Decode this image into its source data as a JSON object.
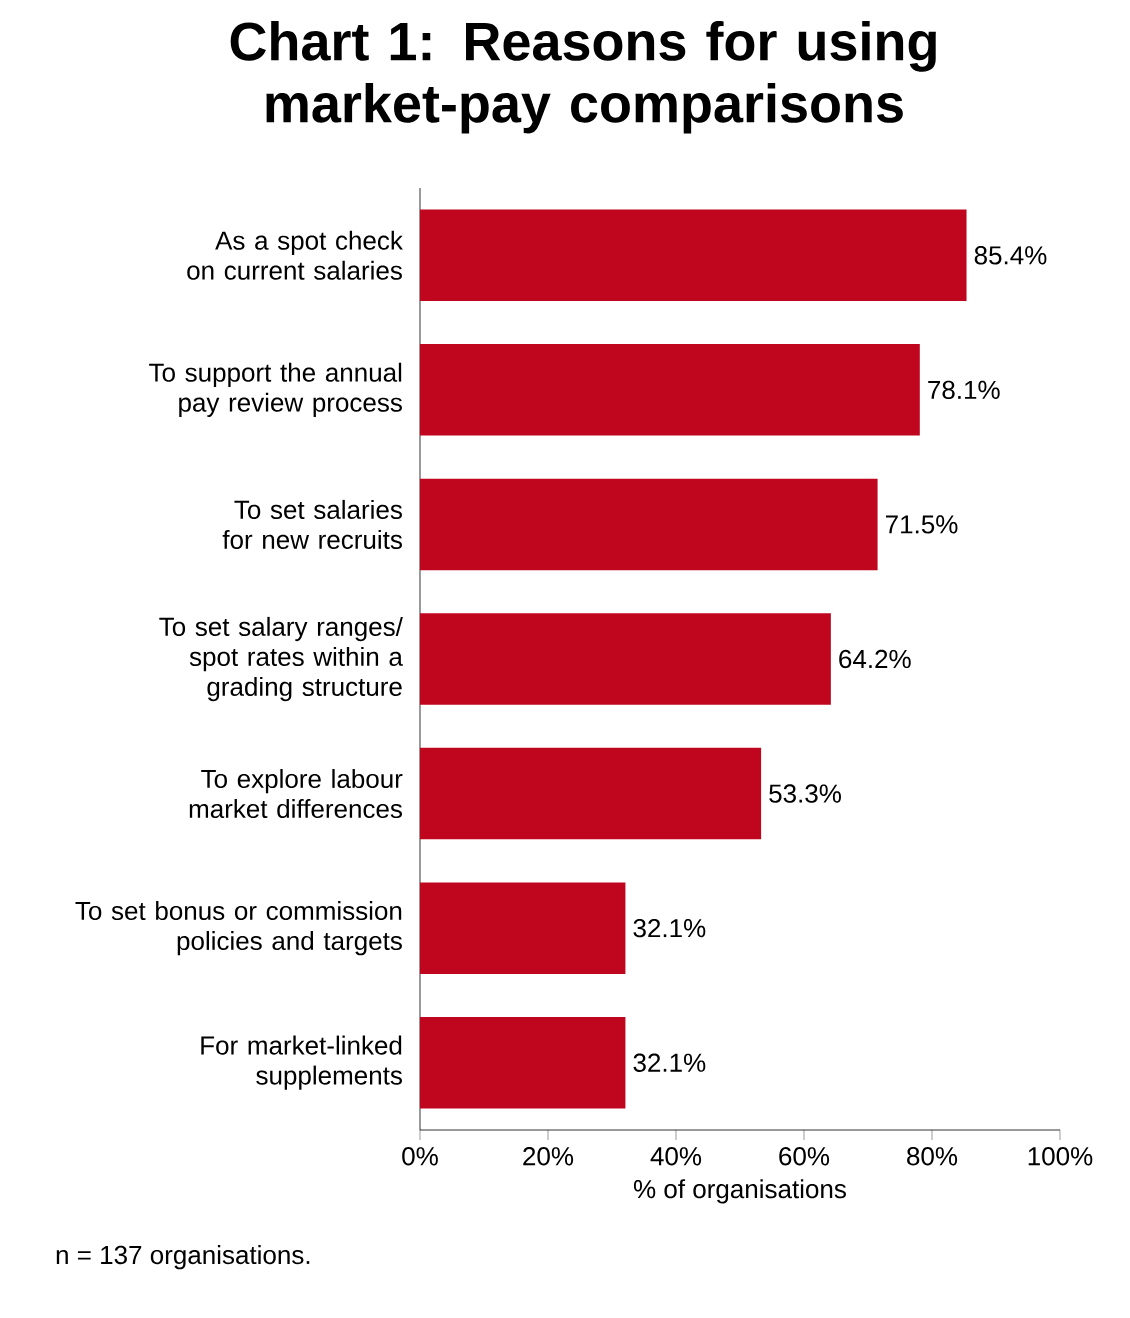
{
  "chart_data": {
    "type": "bar",
    "orientation": "horizontal",
    "title": "Chart 1: Reasons for using market-pay comparisons",
    "xlabel": "% of organisations",
    "categories": [
      "As a spot check on current salaries",
      "To support the annual pay review process",
      "To set salaries for new recruits",
      "To set salary ranges/ spot rates within a grading structure",
      "To explore labour market differences",
      "To set bonus or commission policies and targets",
      "For market-linked supplements"
    ],
    "values": [
      85.4,
      78.1,
      71.5,
      64.2,
      53.3,
      32.1,
      32.1
    ],
    "value_labels": [
      "85.4%",
      "78.1%",
      "71.5%",
      "64.2%",
      "53.3%",
      "32.1%",
      "32.1%"
    ],
    "color": "#c0061f",
    "xlim": [
      0,
      100
    ],
    "xticks": [
      {
        "value": 0,
        "label": "0%"
      },
      {
        "value": 20,
        "label": "20%"
      },
      {
        "value": 40,
        "label": "40%"
      },
      {
        "value": 60,
        "label": "60%"
      },
      {
        "value": 80,
        "label": "80%"
      },
      {
        "value": 100,
        "label": "100%"
      }
    ],
    "annotations": [
      "n = 137 organisations."
    ]
  }
}
